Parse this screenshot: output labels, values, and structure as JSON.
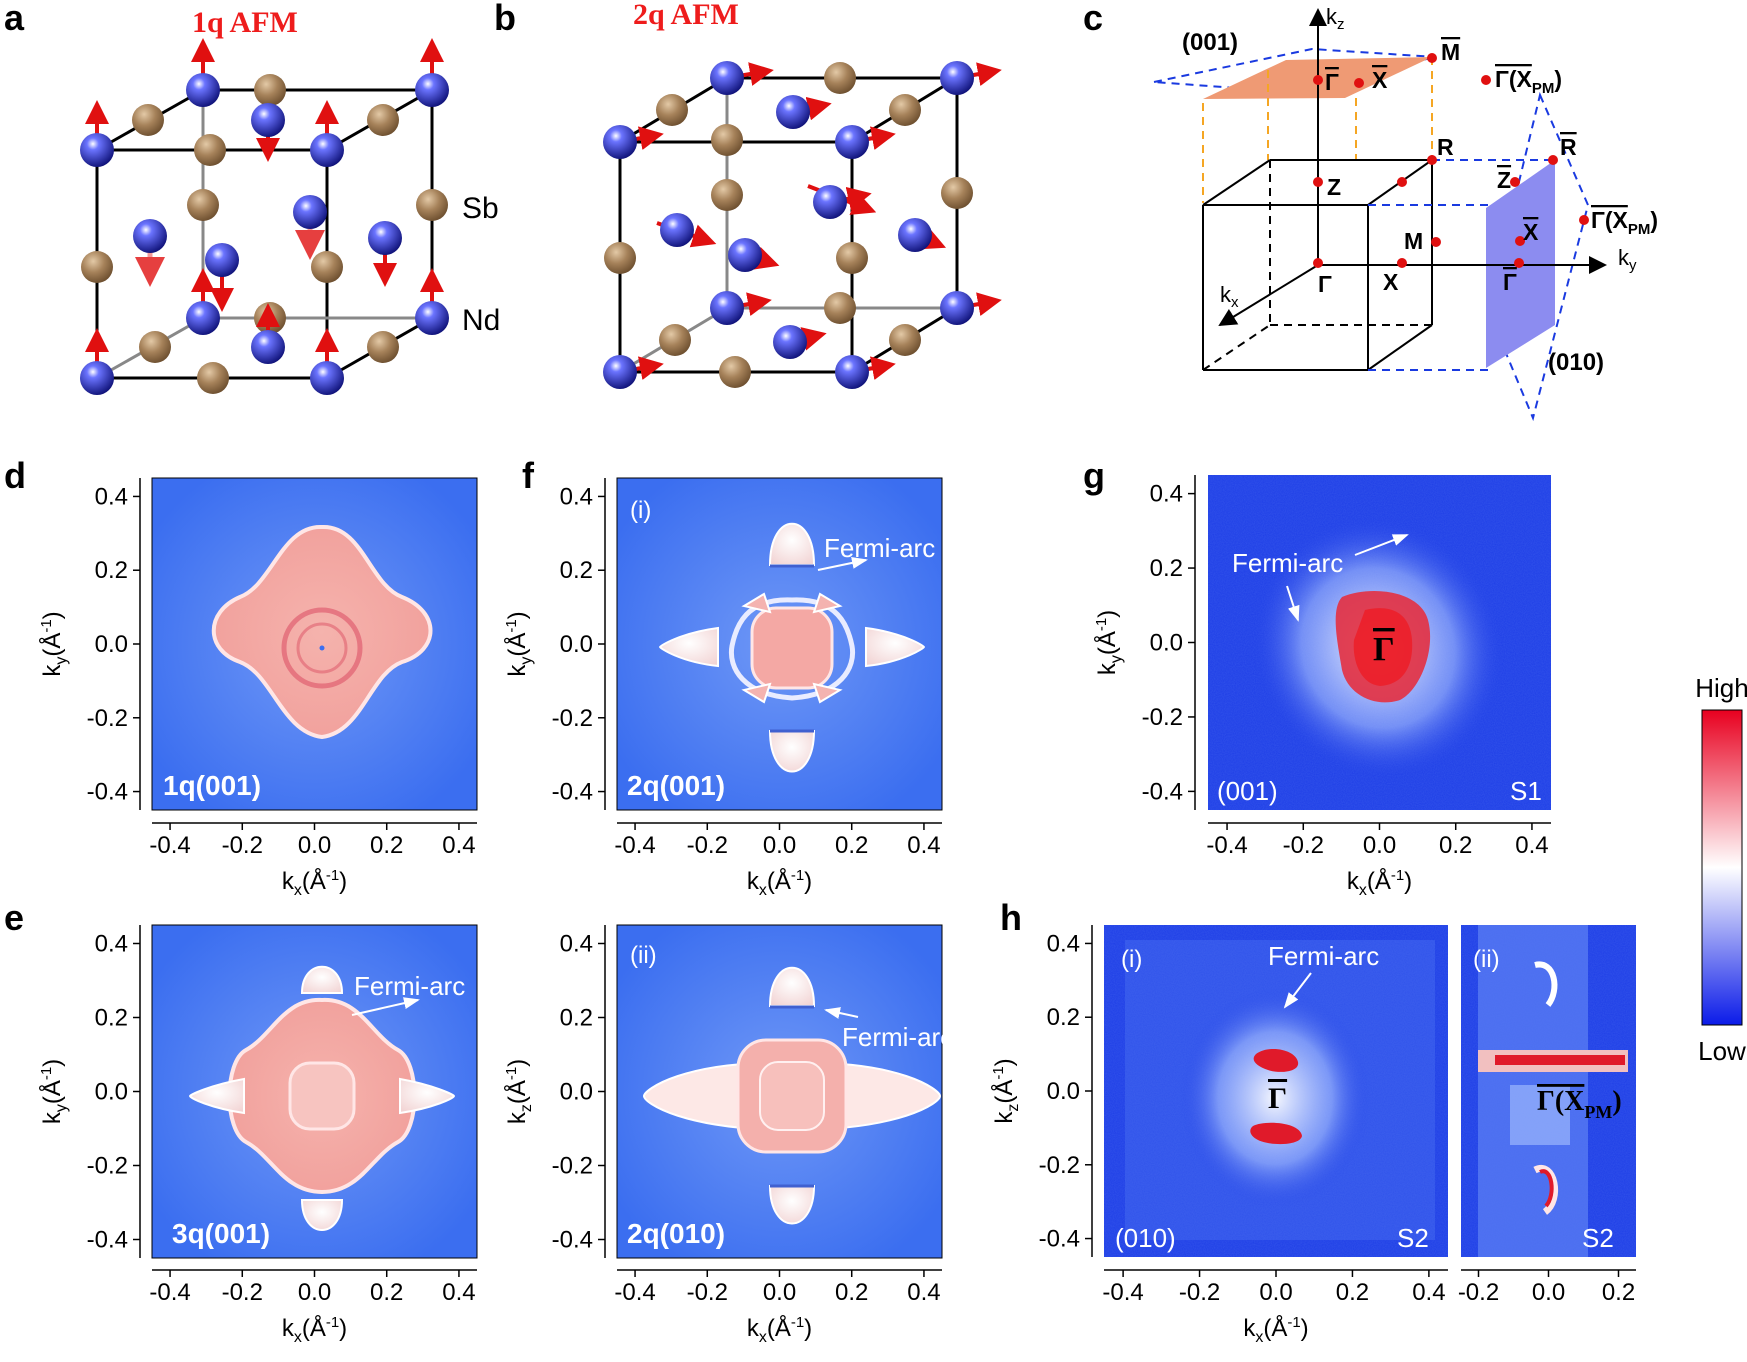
{
  "panel_letters": {
    "a": "a",
    "b": "b",
    "c": "c",
    "d": "d",
    "e": "e",
    "f": "f",
    "g": "g",
    "h": "h"
  },
  "titles": {
    "a": "1q AFM",
    "b": "2q AFM"
  },
  "atoms": {
    "sb": "Sb",
    "nd": "Nd"
  },
  "bz": {
    "kz": "k",
    "kz_sub": "z",
    "ky": "k",
    "ky_sub": "y",
    "kx": "k",
    "kx_sub": "x",
    "plane001": "(001)",
    "plane010": "(010)",
    "M_bar": "M",
    "X_bar_top": "X",
    "Gamma_bar_top": "Γ",
    "GammaXPM_top": "Γ(X",
    "PM": "PM",
    "close": ")",
    "R": "R",
    "Z": "Z",
    "M": "M",
    "X": "X",
    "Gamma": "Γ",
    "R_bar": "R",
    "Z_bar": "Z",
    "X_bar_side": "X",
    "Gamma_bar_side": "Γ",
    "GammaXPM_side": "Γ(X"
  },
  "panels": {
    "d": {
      "label": "1q(001)",
      "xlabel": "k",
      "xsub": "x",
      "ylabel": "k",
      "ysub": "y",
      "unit": "(Å",
      "unit_exp": "-1",
      "unit_close": ")"
    },
    "e": {
      "label": "3q(001)",
      "annot": "Fermi-arc",
      "xlabel": "k",
      "xsub": "x",
      "ylabel": "k",
      "ysub": "y"
    },
    "f1": {
      "sub": "(i)",
      "label": "2q(001)",
      "annot": "Fermi-arc",
      "xlabel": "k",
      "xsub": "x",
      "ylabel": "k",
      "ysub": "y"
    },
    "f2": {
      "sub": "(ii)",
      "label": "2q(010)",
      "annot": "Fermi-arc",
      "xlabel": "k",
      "xsub": "x",
      "ylabel": "k",
      "ysub": "z"
    },
    "g": {
      "surface": "(001)",
      "sample": "S1",
      "annot": "Fermi-arc",
      "gamma": "Γ",
      "xlabel": "k",
      "xsub": "x",
      "ylabel": "k",
      "ysub": "y"
    },
    "h1": {
      "sub": "(i)",
      "surface": "(010)",
      "sample": "S2",
      "annot": "Fermi-arc",
      "gamma": "Γ",
      "xlabel": "k",
      "xsub": "x",
      "ylabel": "k",
      "ysub": "z"
    },
    "h2": {
      "sub": "(ii)",
      "sample": "S2",
      "gamma": "Γ(X",
      "pm": "PM",
      "close": ")"
    }
  },
  "axis_ticks": {
    "k_sym": [
      "-0.4",
      "-0.2",
      "0.0",
      "0.2",
      "0.4"
    ],
    "h2_x": [
      "-0.2",
      "0.0",
      "0.2"
    ]
  },
  "colorbar": {
    "high": "High",
    "low": "Low",
    "colors": [
      "#e8001f",
      "#ffffff",
      "#0b1be8"
    ]
  },
  "colors": {
    "map_blue": "#3b6ef0",
    "pocket_pink": "#f3a6a3",
    "exp_blue": "#1d3de6",
    "nd_blue": "#1a22b8",
    "sb_brown": "#a6825a",
    "spin_red": "#e01010",
    "plane001": "#ef9a74",
    "plane010": "#8c8cf0"
  }
}
